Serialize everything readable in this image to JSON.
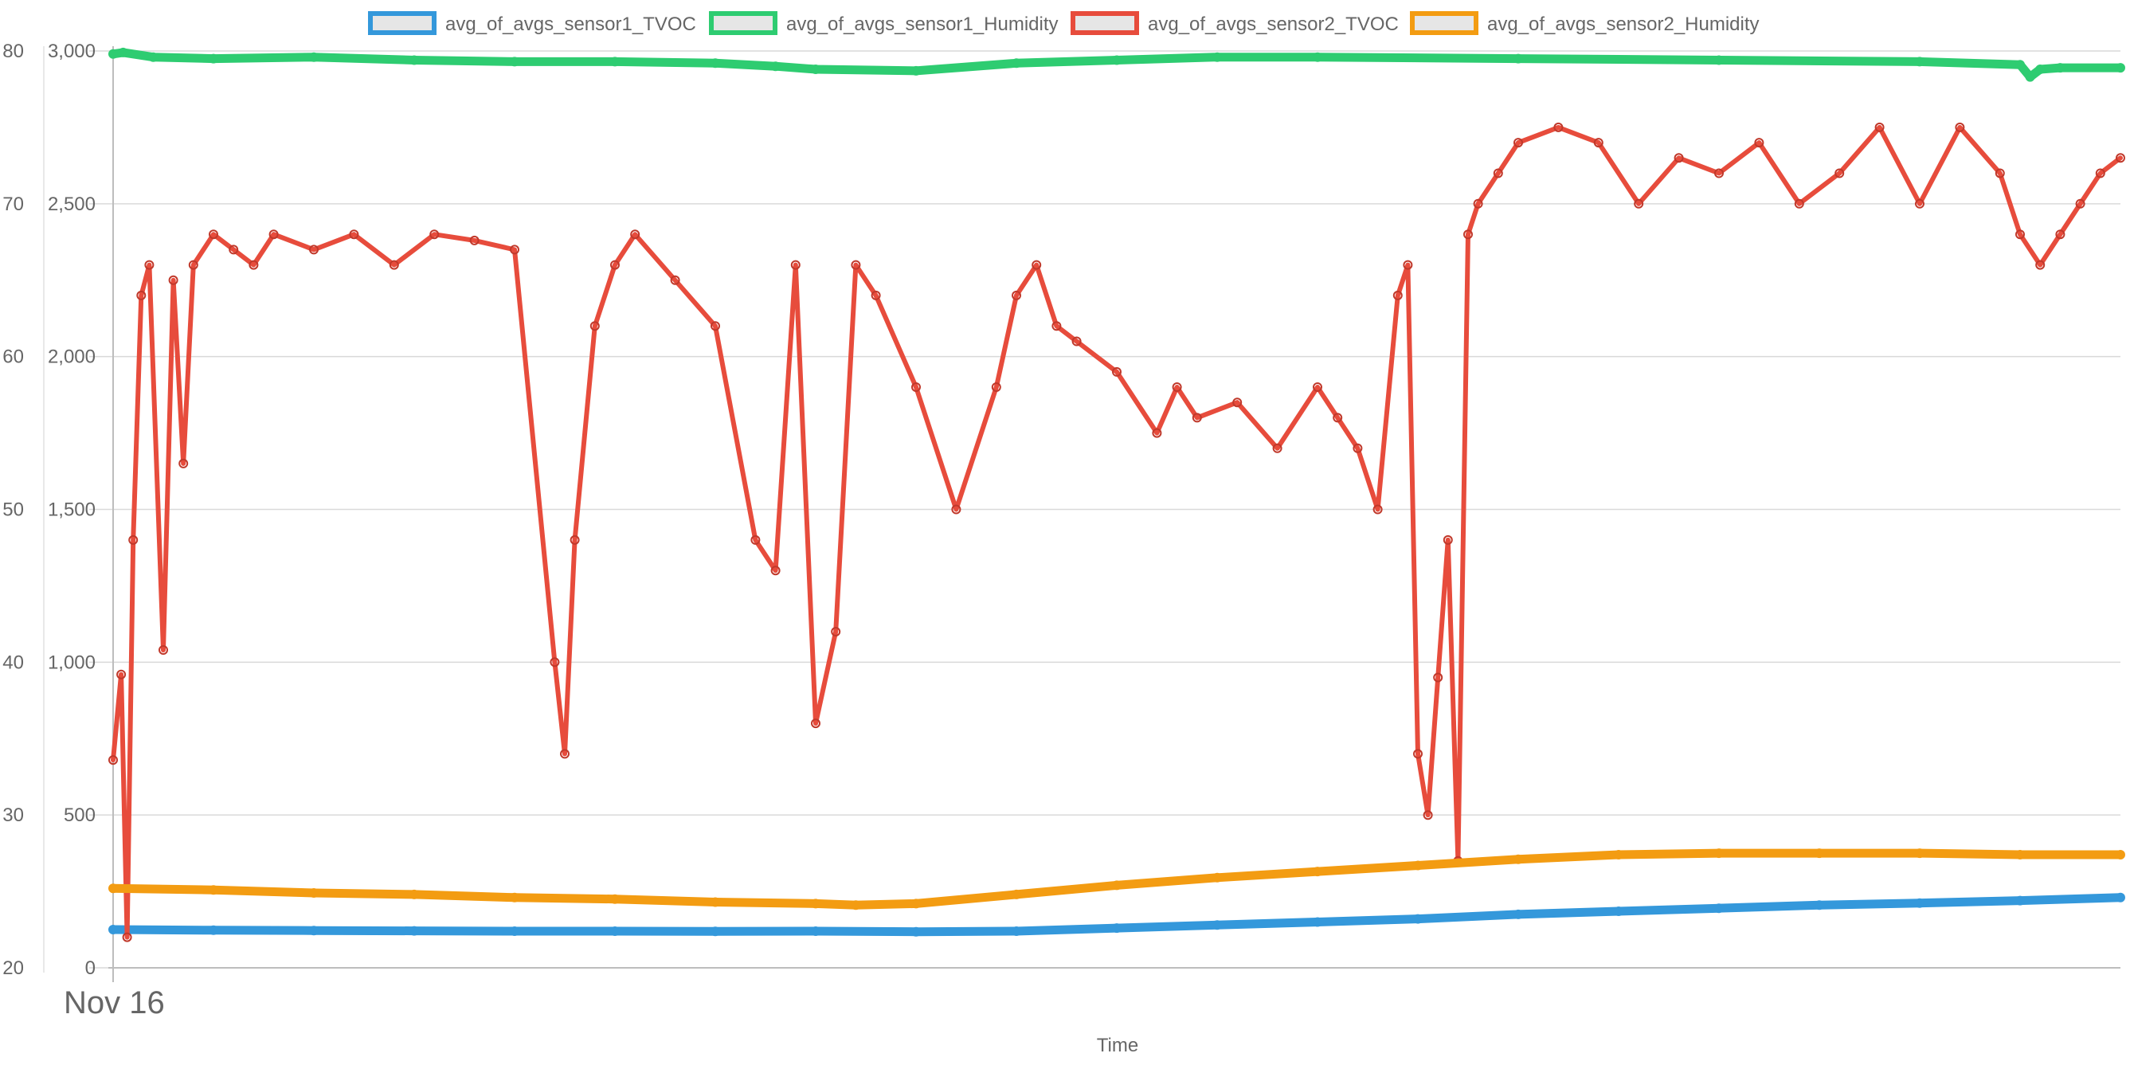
{
  "chart_data": {
    "type": "line",
    "xlabel": "Time",
    "x_start_label": "Nov 16",
    "legend_position": "top",
    "grid": true,
    "y_left": {
      "ylim": [
        20,
        80
      ],
      "ticks": [
        "20",
        "30",
        "40",
        "50",
        "60",
        "70",
        "80"
      ]
    },
    "y_right": {
      "ylim": [
        0,
        3000
      ],
      "ticks": [
        "0",
        "500",
        "1,000",
        "1,500",
        "2,000",
        "2,500",
        "3,000"
      ]
    },
    "series": [
      {
        "name": "avg_of_avgs_sensor1_TVOC",
        "color": "#3498db",
        "axis": "right",
        "x": [
          0,
          0.05,
          0.1,
          0.15,
          0.2,
          0.25,
          0.3,
          0.35,
          0.4,
          0.45,
          0.5,
          0.55,
          0.6,
          0.65,
          0.7,
          0.75,
          0.8,
          0.85,
          0.9,
          0.95,
          1.0
        ],
        "values": [
          125,
          123,
          122,
          121,
          120,
          120,
          119,
          120,
          118,
          120,
          130,
          140,
          150,
          160,
          175,
          185,
          195,
          205,
          212,
          220,
          230
        ]
      },
      {
        "name": "avg_of_avgs_sensor1_Humidity",
        "color": "#2ecc71",
        "axis": "left",
        "x": [
          0,
          0.005,
          0.02,
          0.05,
          0.1,
          0.15,
          0.2,
          0.25,
          0.3,
          0.33,
          0.35,
          0.4,
          0.45,
          0.5,
          0.55,
          0.6,
          0.7,
          0.8,
          0.9,
          0.95,
          0.955,
          0.96,
          0.97,
          1.0
        ],
        "values": [
          79.8,
          79.9,
          79.6,
          79.5,
          79.6,
          79.4,
          79.3,
          79.3,
          79.2,
          79.0,
          78.8,
          78.7,
          79.2,
          79.4,
          79.6,
          79.6,
          79.5,
          79.4,
          79.3,
          79.1,
          78.3,
          78.8,
          78.9,
          78.9
        ]
      },
      {
        "name": "avg_of_avgs_sensor2_TVOC",
        "color": "#e74c3c",
        "axis": "right",
        "x": [
          0,
          0.004,
          0.007,
          0.01,
          0.014,
          0.018,
          0.025,
          0.03,
          0.035,
          0.04,
          0.05,
          0.06,
          0.07,
          0.08,
          0.1,
          0.12,
          0.14,
          0.16,
          0.18,
          0.2,
          0.22,
          0.225,
          0.23,
          0.24,
          0.25,
          0.26,
          0.28,
          0.3,
          0.32,
          0.33,
          0.34,
          0.35,
          0.36,
          0.37,
          0.38,
          0.4,
          0.42,
          0.44,
          0.45,
          0.46,
          0.47,
          0.48,
          0.5,
          0.52,
          0.53,
          0.54,
          0.56,
          0.58,
          0.6,
          0.61,
          0.62,
          0.63,
          0.64,
          0.645,
          0.65,
          0.655,
          0.66,
          0.665,
          0.67,
          0.675,
          0.68,
          0.69,
          0.7,
          0.72,
          0.74,
          0.76,
          0.78,
          0.8,
          0.82,
          0.84,
          0.86,
          0.88,
          0.9,
          0.92,
          0.94,
          0.95,
          0.96,
          0.97,
          0.98,
          0.99,
          1.0
        ],
        "values": [
          680,
          960,
          100,
          1400,
          2200,
          2300,
          1040,
          2250,
          1650,
          2300,
          2400,
          2350,
          2300,
          2400,
          2350,
          2400,
          2300,
          2400,
          2380,
          2350,
          1000,
          700,
          1400,
          2100,
          2300,
          2400,
          2250,
          2100,
          1400,
          1300,
          2300,
          800,
          1100,
          2300,
          2200,
          1900,
          1500,
          1900,
          2200,
          2300,
          2100,
          2050,
          1950,
          1750,
          1900,
          1800,
          1850,
          1700,
          1900,
          1800,
          1700,
          1500,
          2200,
          2300,
          700,
          500,
          950,
          1400,
          350,
          2400,
          2500,
          2600,
          2700,
          2750,
          2700,
          2500,
          2650,
          2600,
          2700,
          2500,
          2600,
          2750,
          2500,
          2750,
          2600,
          2400,
          2300,
          2400,
          2500,
          2600,
          2650
        ]
      },
      {
        "name": "avg_of_avgs_sensor2_Humidity",
        "color": "#f39c12",
        "axis": "left",
        "x": [
          0,
          0.05,
          0.1,
          0.15,
          0.2,
          0.25,
          0.3,
          0.35,
          0.37,
          0.4,
          0.45,
          0.5,
          0.55,
          0.6,
          0.65,
          0.7,
          0.75,
          0.8,
          0.85,
          0.9,
          0.95,
          1.0
        ],
        "values": [
          25.2,
          25.1,
          24.9,
          24.8,
          24.6,
          24.5,
          24.3,
          24.2,
          24.1,
          24.2,
          24.8,
          25.4,
          25.9,
          26.3,
          26.7,
          27.1,
          27.4,
          27.5,
          27.5,
          27.5,
          27.4,
          27.4
        ]
      }
    ]
  }
}
